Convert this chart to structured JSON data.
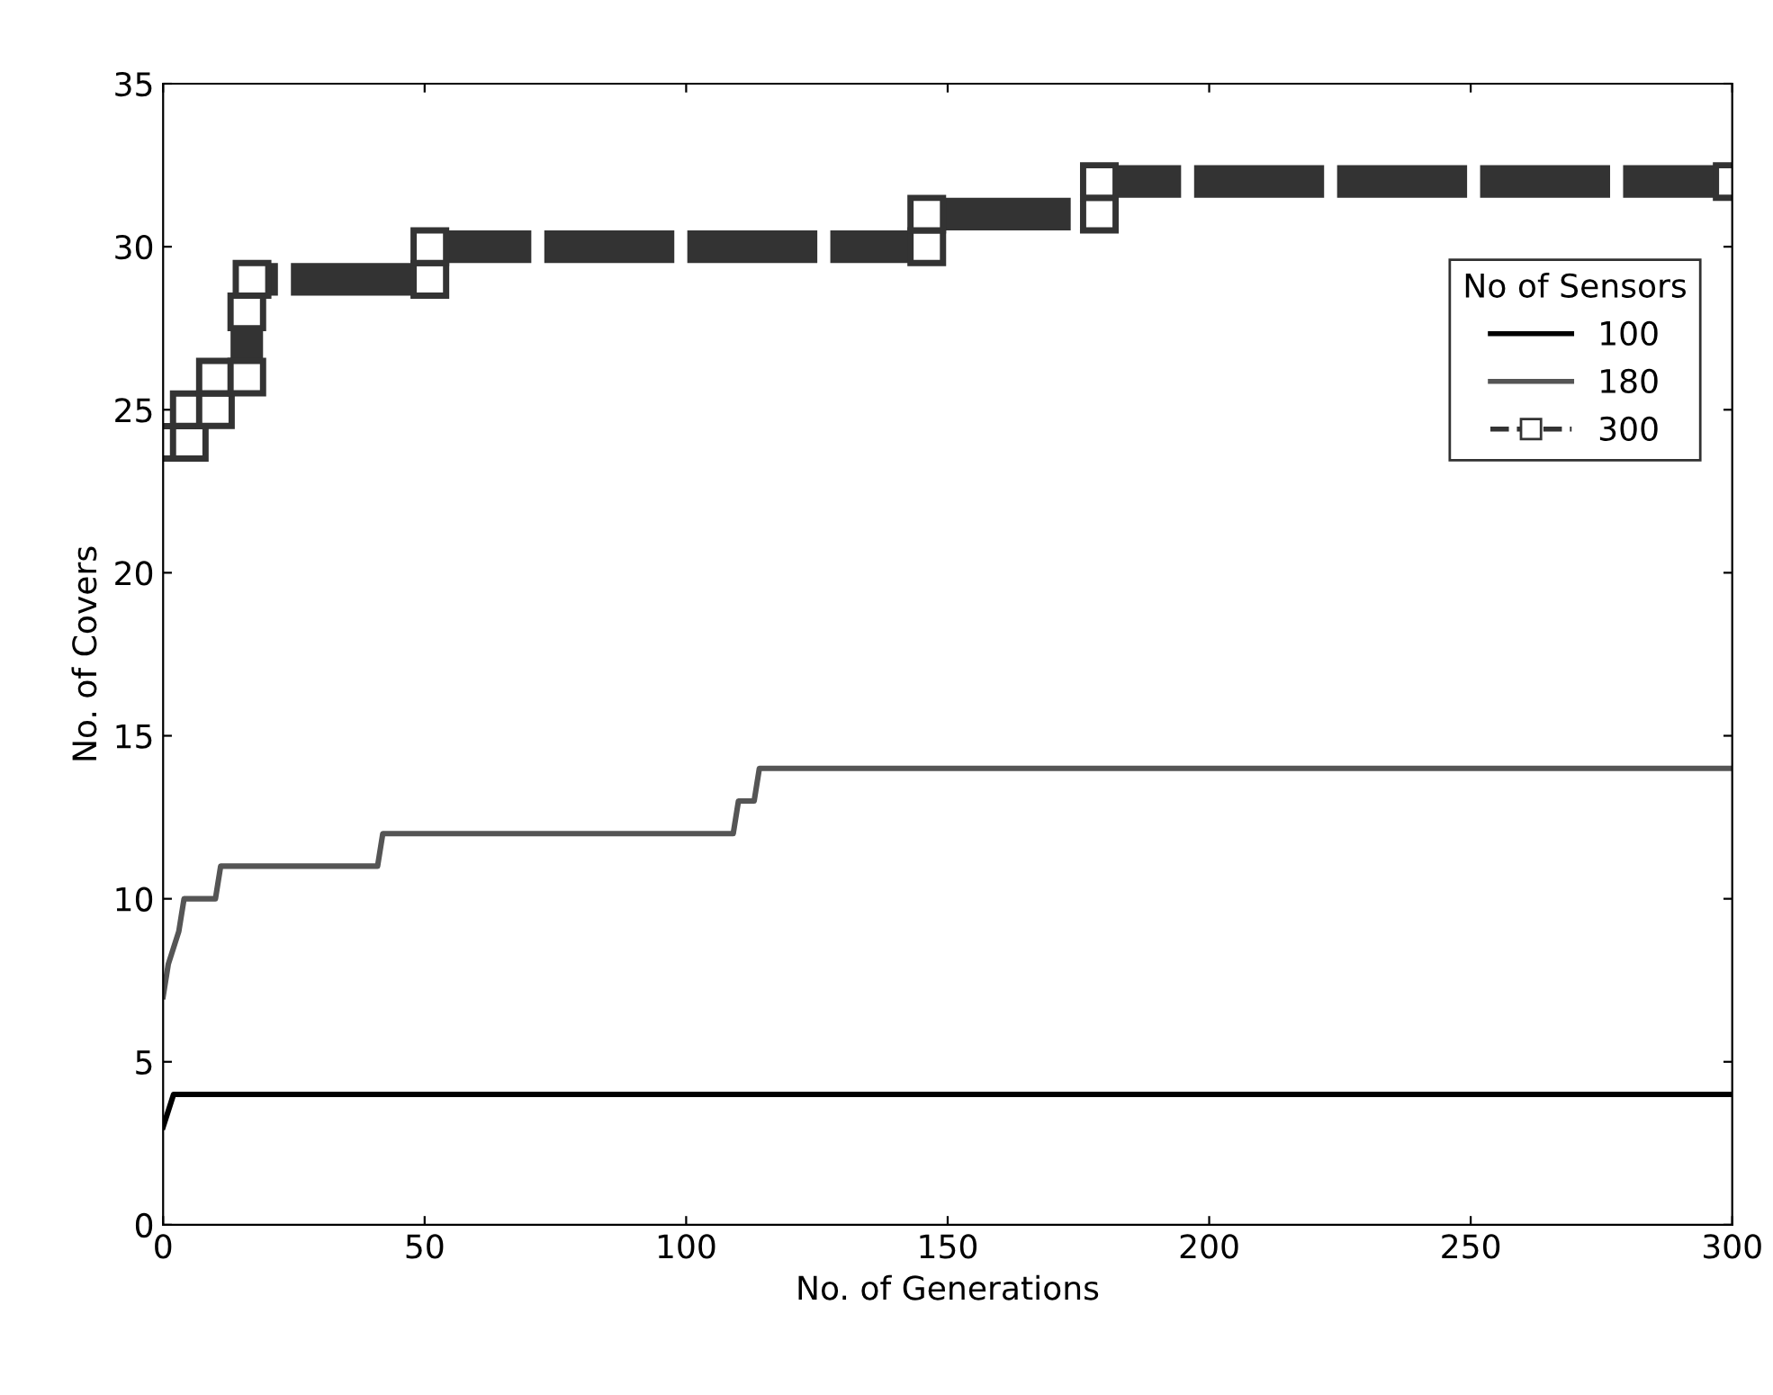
{
  "chart_data": {
    "type": "line",
    "xlabel": "No. of Generations",
    "ylabel": "No. of Covers",
    "legend_title": "No of Sensors",
    "legend": "right",
    "grid": false,
    "xlim": [
      0,
      300
    ],
    "xticks": [
      0,
      50,
      100,
      150,
      200,
      250,
      300
    ],
    "ylim": [
      0,
      35
    ],
    "yticks": [
      0,
      5,
      10,
      15,
      20,
      25,
      30,
      35
    ],
    "series": [
      {
        "name": "100",
        "color": "#000000",
        "line_style": "solid",
        "marker": "none",
        "x": [
          0,
          2,
          300
        ],
        "values": [
          3,
          4,
          4
        ]
      },
      {
        "name": "180",
        "color": "#555555",
        "line_style": "solid",
        "marker": "none",
        "x": [
          0,
          1,
          3,
          4,
          10,
          11,
          41,
          42,
          109,
          110,
          113,
          114,
          300
        ],
        "values": [
          7,
          8,
          9,
          10,
          10,
          11,
          11,
          12,
          12,
          13,
          13,
          14,
          14
        ]
      },
      {
        "name": "300",
        "color": "#333333",
        "line_style": "dashed",
        "marker": "square",
        "x": [
          0,
          5,
          5,
          10,
          10,
          16,
          16,
          17,
          51,
          51,
          146,
          146,
          179,
          179,
          300
        ],
        "values": [
          24,
          24,
          25,
          25,
          26,
          26,
          28,
          29,
          29,
          30,
          30,
          31,
          31,
          32,
          32
        ]
      }
    ]
  }
}
